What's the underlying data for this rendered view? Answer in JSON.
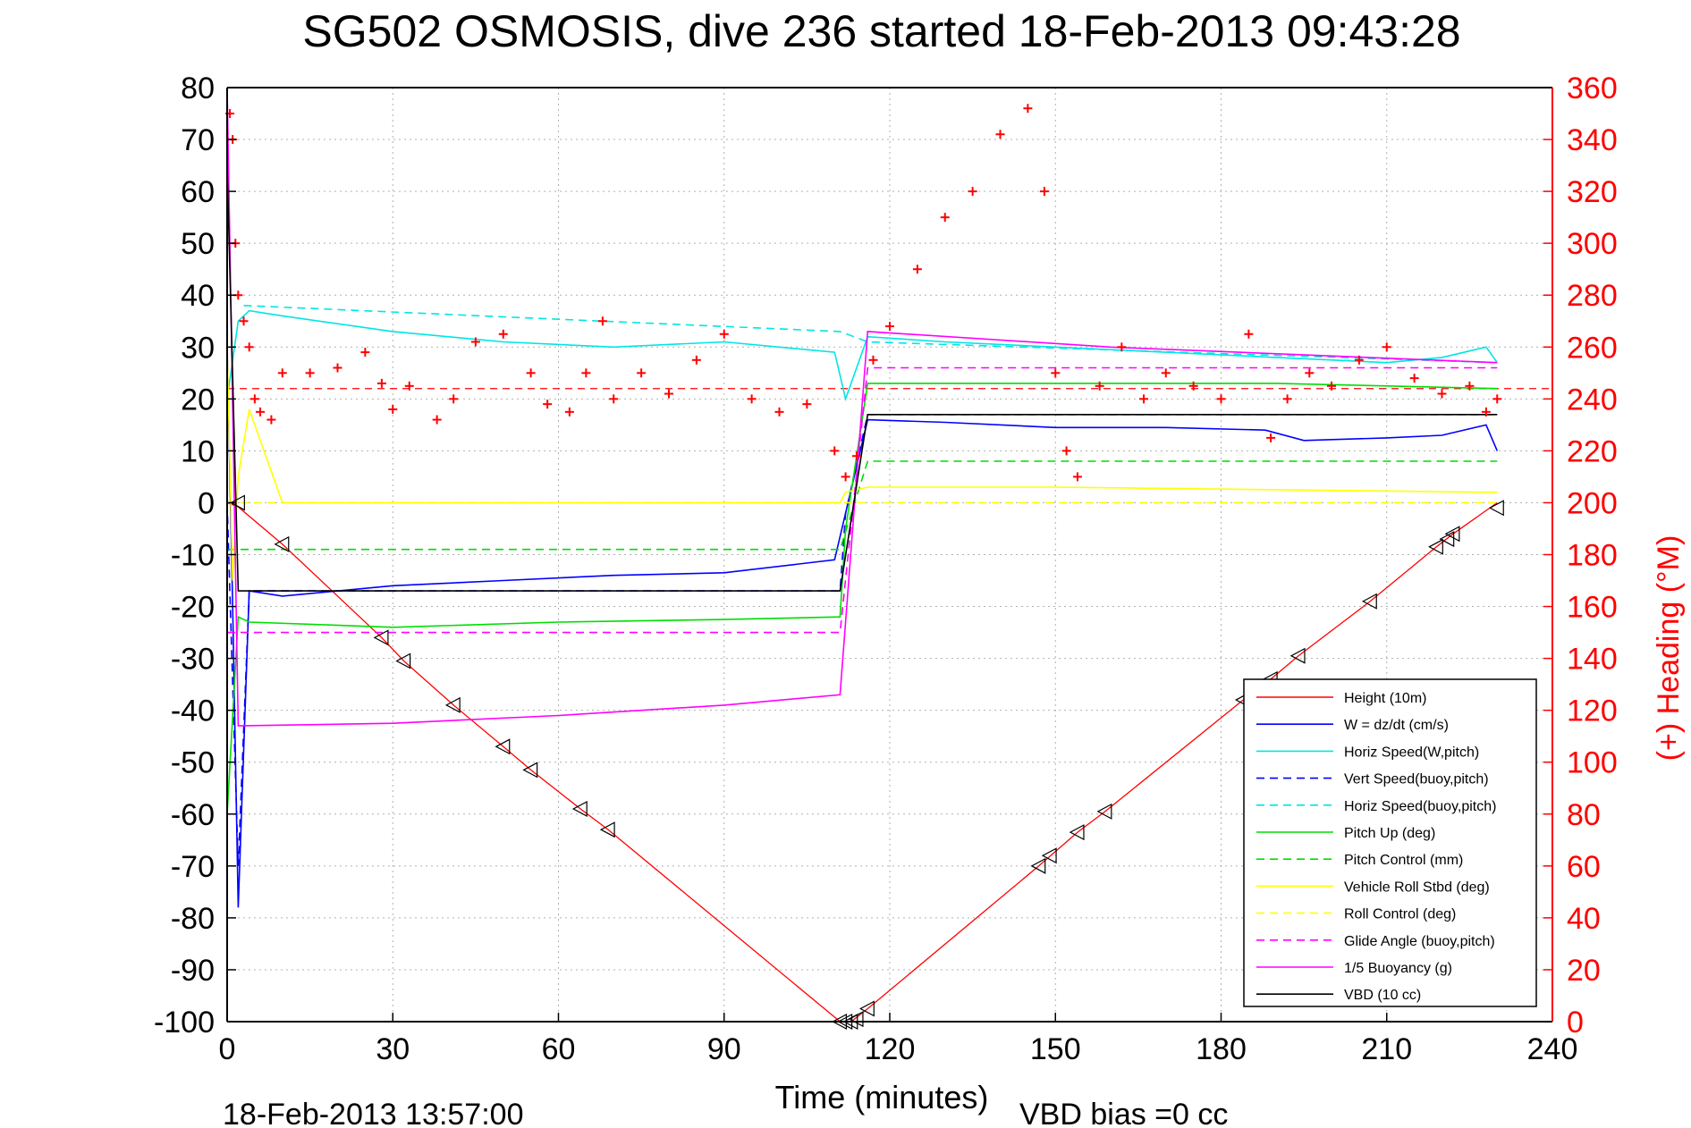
{
  "chart_data": {
    "type": "line",
    "title": "SG502 OSMOSIS, dive 236 started 18-Feb-2013 09:43:28",
    "xlabel": "Time (minutes)",
    "ylabel_right": "(+) Heading (°M)",
    "footer_left": "18-Feb-2013 13:57:00",
    "footer_right": "VBD bias =0 cc",
    "xlim": [
      0,
      240
    ],
    "ylim": [
      -100,
      80
    ],
    "ylim_right": [
      0,
      360
    ],
    "x_ticks": [
      "0",
      "30",
      "60",
      "90",
      "120",
      "150",
      "180",
      "210",
      "240"
    ],
    "y_ticks": [
      "80",
      "70",
      "60",
      "50",
      "40",
      "30",
      "20",
      "10",
      "0",
      "-10",
      "-20",
      "-30",
      "-40",
      "-50",
      "-60",
      "-70",
      "-80",
      "-90",
      "-100"
    ],
    "y_right_ticks": [
      "360",
      "340",
      "320",
      "300",
      "280",
      "260",
      "240",
      "220",
      "200",
      "180",
      "160",
      "140",
      "120",
      "100",
      "80",
      "60",
      "40",
      "20",
      "0"
    ],
    "grid": true,
    "legend_position": "lower-right",
    "series": [
      {
        "name": "Height (10m)",
        "color": "#ff0000",
        "style": "solid",
        "x": [
          0,
          2,
          10,
          28,
          32,
          41,
          50,
          55,
          64,
          69,
          111,
          113,
          116,
          147,
          154,
          159,
          184,
          189,
          194,
          207,
          219,
          222,
          230
        ],
        "y": [
          0,
          -0.8,
          -8,
          -26,
          -30.5,
          -39,
          -47,
          -51.5,
          -59,
          -63,
          -100,
          -100,
          -97.5,
          -70,
          -63.5,
          -59.5,
          -38,
          -34,
          -29.5,
          -19,
          -8.5,
          -6,
          0
        ]
      },
      {
        "name": "W = dz/dt (cm/s)",
        "color": "#0000ff",
        "style": "solid",
        "x": [
          0,
          1,
          2,
          4,
          10,
          30,
          50,
          70,
          90,
          110,
          112,
          116,
          130,
          150,
          170,
          188,
          195,
          210,
          220,
          228,
          230
        ],
        "y": [
          30,
          -20,
          -78,
          -17,
          -18,
          -16,
          -15,
          -14,
          -13.5,
          -11,
          -2,
          16,
          15.5,
          14.5,
          14.5,
          14,
          12,
          12.5,
          13,
          15,
          10
        ]
      },
      {
        "name": "Horiz Speed(W,pitch)",
        "color": "#00e5e5",
        "style": "solid",
        "x": [
          0,
          2,
          4,
          10,
          30,
          50,
          70,
          90,
          110,
          112,
          116,
          130,
          150,
          170,
          190,
          210,
          220,
          228,
          230
        ],
        "y": [
          20,
          35,
          37,
          36,
          33,
          31,
          30,
          31,
          29,
          20,
          32,
          31,
          30,
          29,
          28,
          27,
          28,
          30,
          27
        ]
      },
      {
        "name": "Vert Speed(buoy,pitch)",
        "color": "#0000ff",
        "style": "dashed",
        "x": [
          0,
          2,
          4,
          111,
          112,
          116,
          230
        ],
        "y": [
          0,
          -70,
          -17,
          -17,
          -2,
          17,
          17
        ]
      },
      {
        "name": "Horiz Speed(buoy,pitch)",
        "color": "#00e5e5",
        "style": "dashed",
        "x": [
          3,
          111,
          116,
          230
        ],
        "y": [
          38,
          33,
          31,
          27
        ]
      },
      {
        "name": "Pitch Up (deg)",
        "color": "#00dd00",
        "style": "solid",
        "x": [
          0,
          2,
          4,
          30,
          60,
          90,
          111,
          112,
          116,
          150,
          190,
          230
        ],
        "y": [
          -60,
          -22,
          -23,
          -24,
          -23,
          -22.5,
          -22,
          -5,
          23,
          23,
          23,
          22
        ]
      },
      {
        "name": "Pitch Control (mm)",
        "color": "#00dd00",
        "style": "dashed",
        "x": [
          0,
          3,
          111,
          116,
          230
        ],
        "y": [
          -9,
          -9,
          -9,
          8,
          8
        ]
      },
      {
        "name": "Vehicle Roll Stbd (deg)",
        "color": "#ffff00",
        "style": "solid",
        "x": [
          0,
          1,
          2,
          4,
          10,
          60,
          111,
          112,
          116,
          150,
          230
        ],
        "y": [
          30,
          -15,
          5,
          18,
          0,
          0,
          0,
          2,
          3,
          3,
          2
        ]
      },
      {
        "name": "Roll Control (deg)",
        "color": "#ffff00",
        "style": "dashed",
        "x": [
          0,
          3,
          230
        ],
        "y": [
          0,
          0,
          0
        ]
      },
      {
        "name": "Glide Angle (buoy,pitch)",
        "color": "#ff00ff",
        "style": "dashed",
        "x": [
          0,
          3,
          111,
          116,
          230
        ],
        "y": [
          -25,
          -25,
          -25,
          26,
          26
        ]
      },
      {
        "name": "1/5 Buoyancy (g)",
        "color": "#ff00ff",
        "style": "solid",
        "x": [
          0,
          2,
          30,
          60,
          90,
          111,
          116,
          160,
          230
        ],
        "y": [
          80,
          -43,
          -42.5,
          -41,
          -39,
          -37,
          33,
          30,
          27
        ]
      },
      {
        "name": "VBD (10 cc)",
        "color": "#000000",
        "style": "solid",
        "x": [
          0,
          2,
          3,
          111,
          116,
          230
        ],
        "y": [
          65,
          -17,
          -17,
          -17,
          17,
          17
        ]
      }
    ],
    "heading_points": {
      "color": "#ff0000",
      "marker": "+",
      "x": [
        0.5,
        1,
        1.5,
        2,
        3,
        4,
        5,
        6,
        8,
        10,
        15,
        20,
        25,
        28,
        30,
        33,
        38,
        41,
        45,
        50,
        55,
        58,
        62,
        65,
        68,
        70,
        75,
        80,
        85,
        90,
        95,
        100,
        105,
        110,
        112,
        114,
        117,
        120,
        125,
        130,
        135,
        140,
        145,
        148,
        150,
        152,
        154,
        158,
        162,
        166,
        170,
        175,
        180,
        185,
        189,
        192,
        196,
        200,
        205,
        210,
        215,
        220,
        225,
        228,
        230
      ],
      "y": [
        350,
        340,
        300,
        280,
        270,
        260,
        240,
        235,
        232,
        250,
        250,
        252,
        258,
        246,
        236,
        245,
        232,
        240,
        262,
        265,
        250,
        238,
        235,
        250,
        270,
        240,
        250,
        242,
        255,
        265,
        240,
        235,
        238,
        220,
        210,
        218,
        255,
        268,
        290,
        310,
        320,
        342,
        352,
        320,
        250,
        220,
        210,
        245,
        260,
        240,
        250,
        245,
        240,
        265,
        225,
        240,
        250,
        245,
        255,
        260,
        248,
        242,
        245,
        235,
        240
      ]
    },
    "reference_lines": [
      {
        "color": "#ff0000",
        "style": "dashed",
        "y_right": 244
      }
    ],
    "glider_markers": {
      "color": "#000000",
      "x": [
        2,
        10,
        28,
        32,
        41,
        50,
        55,
        64,
        69,
        111,
        112,
        113,
        114,
        116,
        147,
        149,
        154,
        159,
        184,
        189,
        194,
        207,
        219,
        221,
        222,
        230
      ],
      "y": [
        0,
        -8,
        -26,
        -30.5,
        -39,
        -47,
        -51.5,
        -59,
        -63,
        -100,
        -100,
        -100,
        -99.5,
        -97.5,
        -70,
        -68,
        -63.5,
        -59.5,
        -38,
        -34,
        -29.5,
        -19,
        -8.5,
        -7,
        -6,
        -1
      ]
    }
  }
}
